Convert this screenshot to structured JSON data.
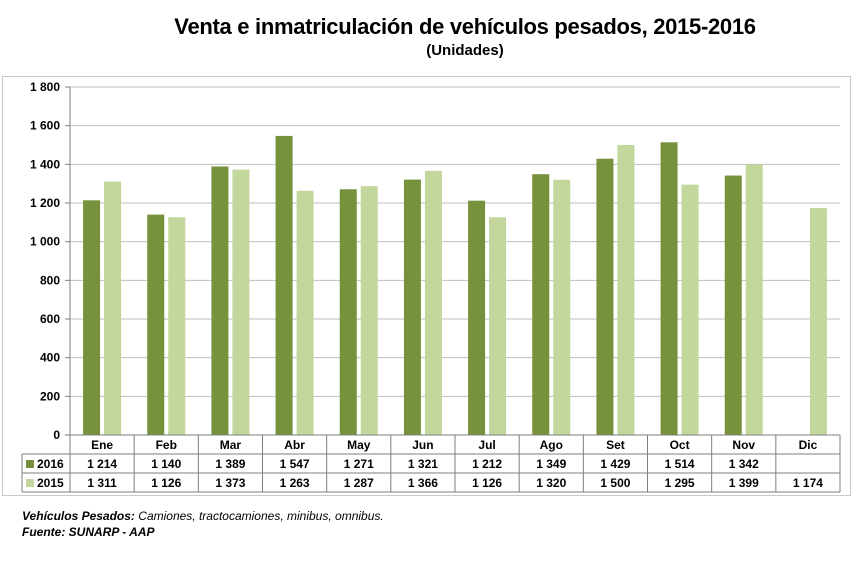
{
  "title": "Venta e inmatriculación de vehículos pesados, 2015-2016",
  "subtitle": "(Unidades)",
  "chart_data": {
    "type": "bar",
    "categories": [
      "Ene",
      "Feb",
      "Mar",
      "Abr",
      "May",
      "Jun",
      "Jul",
      "Ago",
      "Set",
      "Oct",
      "Nov",
      "Dic"
    ],
    "series": [
      {
        "name": "2016",
        "color": "#76923c",
        "values": [
          1214,
          1140,
          1389,
          1547,
          1271,
          1321,
          1212,
          1349,
          1429,
          1514,
          1342,
          null
        ],
        "labels": [
          "1 214",
          "1 140",
          "1 389",
          "1 547",
          "1 271",
          "1 321",
          "1 212",
          "1 349",
          "1 429",
          "1 514",
          "1 342",
          ""
        ]
      },
      {
        "name": "2015",
        "color": "#c3d69b",
        "values": [
          1311,
          1126,
          1373,
          1263,
          1287,
          1366,
          1126,
          1320,
          1500,
          1295,
          1399,
          1174
        ],
        "labels": [
          "1 311",
          "1 126",
          "1 373",
          "1 263",
          "1 287",
          "1 366",
          "1 126",
          "1 320",
          "1 500",
          "1 295",
          "1 399",
          "1 174"
        ]
      }
    ],
    "ylim": [
      0,
      1800
    ],
    "yticks": [
      0,
      200,
      400,
      600,
      800,
      1000,
      1200,
      1400,
      1600,
      1800
    ],
    "ytick_labels": [
      "0",
      "200",
      "400",
      "600",
      "800",
      "1 000",
      "1 200",
      "1 400",
      "1 600",
      "1 800"
    ],
    "grid": true,
    "legend": "data-table"
  },
  "note": {
    "label": "Vehículos  Pesados:",
    "text": " Camiones, tractocamiones, minibus, omnibus."
  },
  "source": "Fuente: SUNARP - AAP"
}
